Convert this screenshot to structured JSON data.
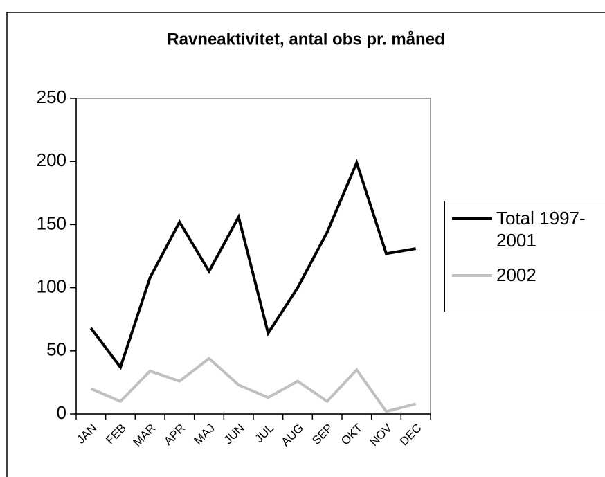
{
  "chart_data": {
    "type": "line",
    "title": "Ravneaktivitet, antal obs pr. måned",
    "categories": [
      "JAN",
      "FEB",
      "MAR",
      "APR",
      "MAJ",
      "JUN",
      "JUL",
      "AUG",
      "SEP",
      "OKT",
      "NOV",
      "DEC"
    ],
    "series": [
      {
        "name": "Total 1997-2001",
        "color": "#000000",
        "values": [
          68,
          37,
          108,
          152,
          113,
          156,
          64,
          100,
          144,
          199,
          127,
          131
        ]
      },
      {
        "name": "2002",
        "color": "#c0c0c0",
        "values": [
          20,
          10,
          34,
          26,
          44,
          23,
          13,
          26,
          10,
          35,
          2,
          8
        ]
      }
    ],
    "ylim": [
      0,
      250
    ],
    "yticks": [
      0,
      50,
      100,
      150,
      200,
      250
    ],
    "grid": false,
    "legend": "right"
  }
}
